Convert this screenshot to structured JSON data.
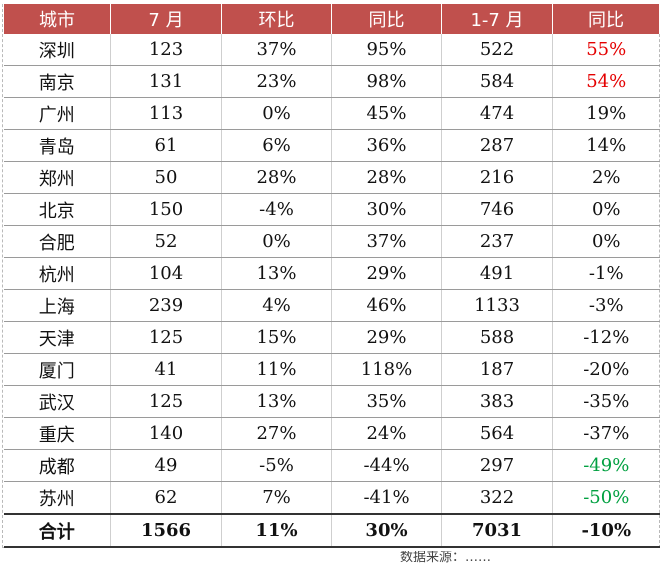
{
  "colors": {
    "header_bg": "#c0504d",
    "header_text": "#ffffff",
    "positive_highlight": "#e40000",
    "negative_highlight": "#00a040"
  },
  "headers": [
    "城市",
    "7 月",
    "环比",
    "同比",
    "1-7 月",
    "同比"
  ],
  "rows": [
    [
      "深圳",
      "123",
      "37%",
      "95%",
      "522",
      "55%"
    ],
    [
      "南京",
      "131",
      "23%",
      "98%",
      "584",
      "54%"
    ],
    [
      "广州",
      "113",
      "0%",
      "45%",
      "474",
      "19%"
    ],
    [
      "青岛",
      "61",
      "6%",
      "36%",
      "287",
      "14%"
    ],
    [
      "郑州",
      "50",
      "28%",
      "28%",
      "216",
      "2%"
    ],
    [
      "北京",
      "150",
      "-4%",
      "30%",
      "746",
      "0%"
    ],
    [
      "合肥",
      "52",
      "0%",
      "37%",
      "237",
      "0%"
    ],
    [
      "杭州",
      "104",
      "13%",
      "29%",
      "491",
      "-1%"
    ],
    [
      "上海",
      "239",
      "4%",
      "46%",
      "1133",
      "-3%"
    ],
    [
      "天津",
      "125",
      "15%",
      "29%",
      "588",
      "-12%"
    ],
    [
      "厦门",
      "41",
      "11%",
      "118%",
      "187",
      "-20%"
    ],
    [
      "武汉",
      "125",
      "13%",
      "35%",
      "383",
      "-35%"
    ],
    [
      "重庆",
      "140",
      "27%",
      "24%",
      "564",
      "-37%"
    ],
    [
      "成都",
      "49",
      "-5%",
      "-44%",
      "297",
      "-49%"
    ],
    [
      "苏州",
      "62",
      "7%",
      "-41%",
      "322",
      "-50%"
    ]
  ],
  "highlight": {
    "red_rows": [
      0,
      1
    ],
    "green_rows": [
      13,
      14
    ]
  },
  "total": [
    "合计",
    "1566",
    "11%",
    "30%",
    "7031",
    "-10%"
  ],
  "footer": "数据来源：……"
}
